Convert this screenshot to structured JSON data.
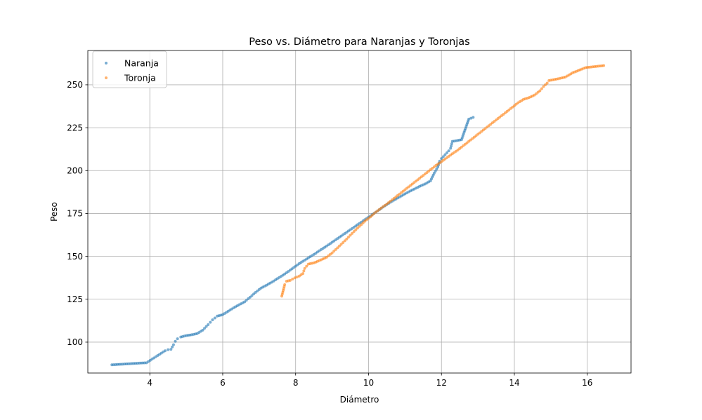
{
  "chart_data": {
    "type": "scatter",
    "title": "Peso vs. Diámetro para Naranjas y Toronjas",
    "xlabel": "Diámetro",
    "ylabel": "Peso",
    "xlim": [
      2.3,
      17.2
    ],
    "ylim": [
      82,
      270
    ],
    "xticks": [
      4,
      6,
      8,
      10,
      12,
      14,
      16
    ],
    "yticks": [
      100,
      125,
      150,
      175,
      200,
      225,
      250
    ],
    "grid": true,
    "legend_position": "top-left",
    "series": [
      {
        "name": "Naranja",
        "color": "#1f77b4",
        "points": [
          [
            2.96,
            86.8
          ],
          [
            3.91,
            88.0
          ],
          [
            4.42,
            95.0
          ],
          [
            4.5,
            95.6
          ],
          [
            4.58,
            95.8
          ],
          [
            4.65,
            98.5
          ],
          [
            4.7,
            100.5
          ],
          [
            4.76,
            102.0
          ],
          [
            4.85,
            103.0
          ],
          [
            5.0,
            103.8
          ],
          [
            5.15,
            104.3
          ],
          [
            5.3,
            105.0
          ],
          [
            5.45,
            107.0
          ],
          [
            5.6,
            110.2
          ],
          [
            5.72,
            113.0
          ],
          [
            5.85,
            115.2
          ],
          [
            6.0,
            116.0
          ],
          [
            6.15,
            118.0
          ],
          [
            6.3,
            120.0
          ],
          [
            6.45,
            121.8
          ],
          [
            6.6,
            123.5
          ],
          [
            6.75,
            126.2
          ],
          [
            6.9,
            129.0
          ],
          [
            7.05,
            131.5
          ],
          [
            7.2,
            133.2
          ],
          [
            7.35,
            135.0
          ],
          [
            7.5,
            137.0
          ],
          [
            7.65,
            139.0
          ],
          [
            7.8,
            141.2
          ],
          [
            7.95,
            143.5
          ],
          [
            8.1,
            145.8
          ],
          [
            8.25,
            147.8
          ],
          [
            8.4,
            149.8
          ],
          [
            8.55,
            151.8
          ],
          [
            8.7,
            154.0
          ],
          [
            8.85,
            156.0
          ],
          [
            9.0,
            158.2
          ],
          [
            9.15,
            160.4
          ],
          [
            9.3,
            162.6
          ],
          [
            9.45,
            164.8
          ],
          [
            9.6,
            167.0
          ],
          [
            9.75,
            169.2
          ],
          [
            9.9,
            171.4
          ],
          [
            10.05,
            173.6
          ],
          [
            10.2,
            175.8
          ],
          [
            10.35,
            178.0
          ],
          [
            10.5,
            180.2
          ],
          [
            10.65,
            182.2
          ],
          [
            10.8,
            184.0
          ],
          [
            10.95,
            185.8
          ],
          [
            11.1,
            187.6
          ],
          [
            11.25,
            189.2
          ],
          [
            11.4,
            190.8
          ],
          [
            11.55,
            192.2
          ],
          [
            11.7,
            194.0
          ],
          [
            11.8,
            198.5
          ],
          [
            11.9,
            202.0
          ],
          [
            11.95,
            205.5
          ],
          [
            12.0,
            207.0
          ],
          [
            12.2,
            211.5
          ],
          [
            12.25,
            213.0
          ],
          [
            12.3,
            217.0
          ],
          [
            12.55,
            218.0
          ],
          [
            12.75,
            230.0
          ],
          [
            12.87,
            231.0
          ]
        ]
      },
      {
        "name": "Toronja",
        "color": "#ff7f0e",
        "points": [
          [
            7.62,
            126.8
          ],
          [
            7.7,
            133.5
          ],
          [
            7.75,
            135.5
          ],
          [
            7.85,
            136.0
          ],
          [
            7.98,
            137.5
          ],
          [
            8.1,
            138.5
          ],
          [
            8.2,
            140.0
          ],
          [
            8.25,
            143.0
          ],
          [
            8.35,
            145.5
          ],
          [
            8.5,
            146.2
          ],
          [
            8.7,
            148.0
          ],
          [
            8.85,
            149.5
          ],
          [
            9.0,
            152.0
          ],
          [
            9.15,
            155.0
          ],
          [
            9.3,
            158.0
          ],
          [
            9.45,
            161.2
          ],
          [
            9.6,
            164.5
          ],
          [
            9.75,
            167.5
          ],
          [
            9.9,
            170.5
          ],
          [
            10.05,
            173.0
          ],
          [
            10.2,
            175.8
          ],
          [
            10.35,
            178.2
          ],
          [
            10.5,
            180.5
          ],
          [
            10.65,
            183.0
          ],
          [
            10.8,
            185.5
          ],
          [
            10.95,
            188.0
          ],
          [
            11.1,
            190.5
          ],
          [
            11.25,
            193.0
          ],
          [
            11.4,
            195.5
          ],
          [
            11.55,
            198.0
          ],
          [
            11.7,
            200.5
          ],
          [
            11.85,
            203.0
          ],
          [
            12.0,
            205.2
          ],
          [
            12.15,
            207.5
          ],
          [
            12.3,
            209.8
          ],
          [
            12.45,
            212.0
          ],
          [
            12.6,
            214.5
          ],
          [
            12.75,
            217.0
          ],
          [
            12.9,
            219.5
          ],
          [
            13.05,
            222.0
          ],
          [
            13.2,
            224.5
          ],
          [
            13.35,
            227.0
          ],
          [
            13.5,
            229.5
          ],
          [
            13.65,
            232.0
          ],
          [
            13.8,
            234.5
          ],
          [
            13.95,
            237.0
          ],
          [
            14.1,
            239.5
          ],
          [
            14.25,
            241.5
          ],
          [
            14.4,
            242.5
          ],
          [
            14.55,
            244.0
          ],
          [
            14.7,
            246.5
          ],
          [
            14.8,
            249.0
          ],
          [
            14.9,
            251.0
          ],
          [
            14.95,
            252.5
          ],
          [
            15.2,
            253.5
          ],
          [
            15.4,
            254.5
          ],
          [
            15.6,
            257.0
          ],
          [
            15.95,
            260.0
          ],
          [
            16.45,
            261.2
          ]
        ]
      }
    ]
  }
}
